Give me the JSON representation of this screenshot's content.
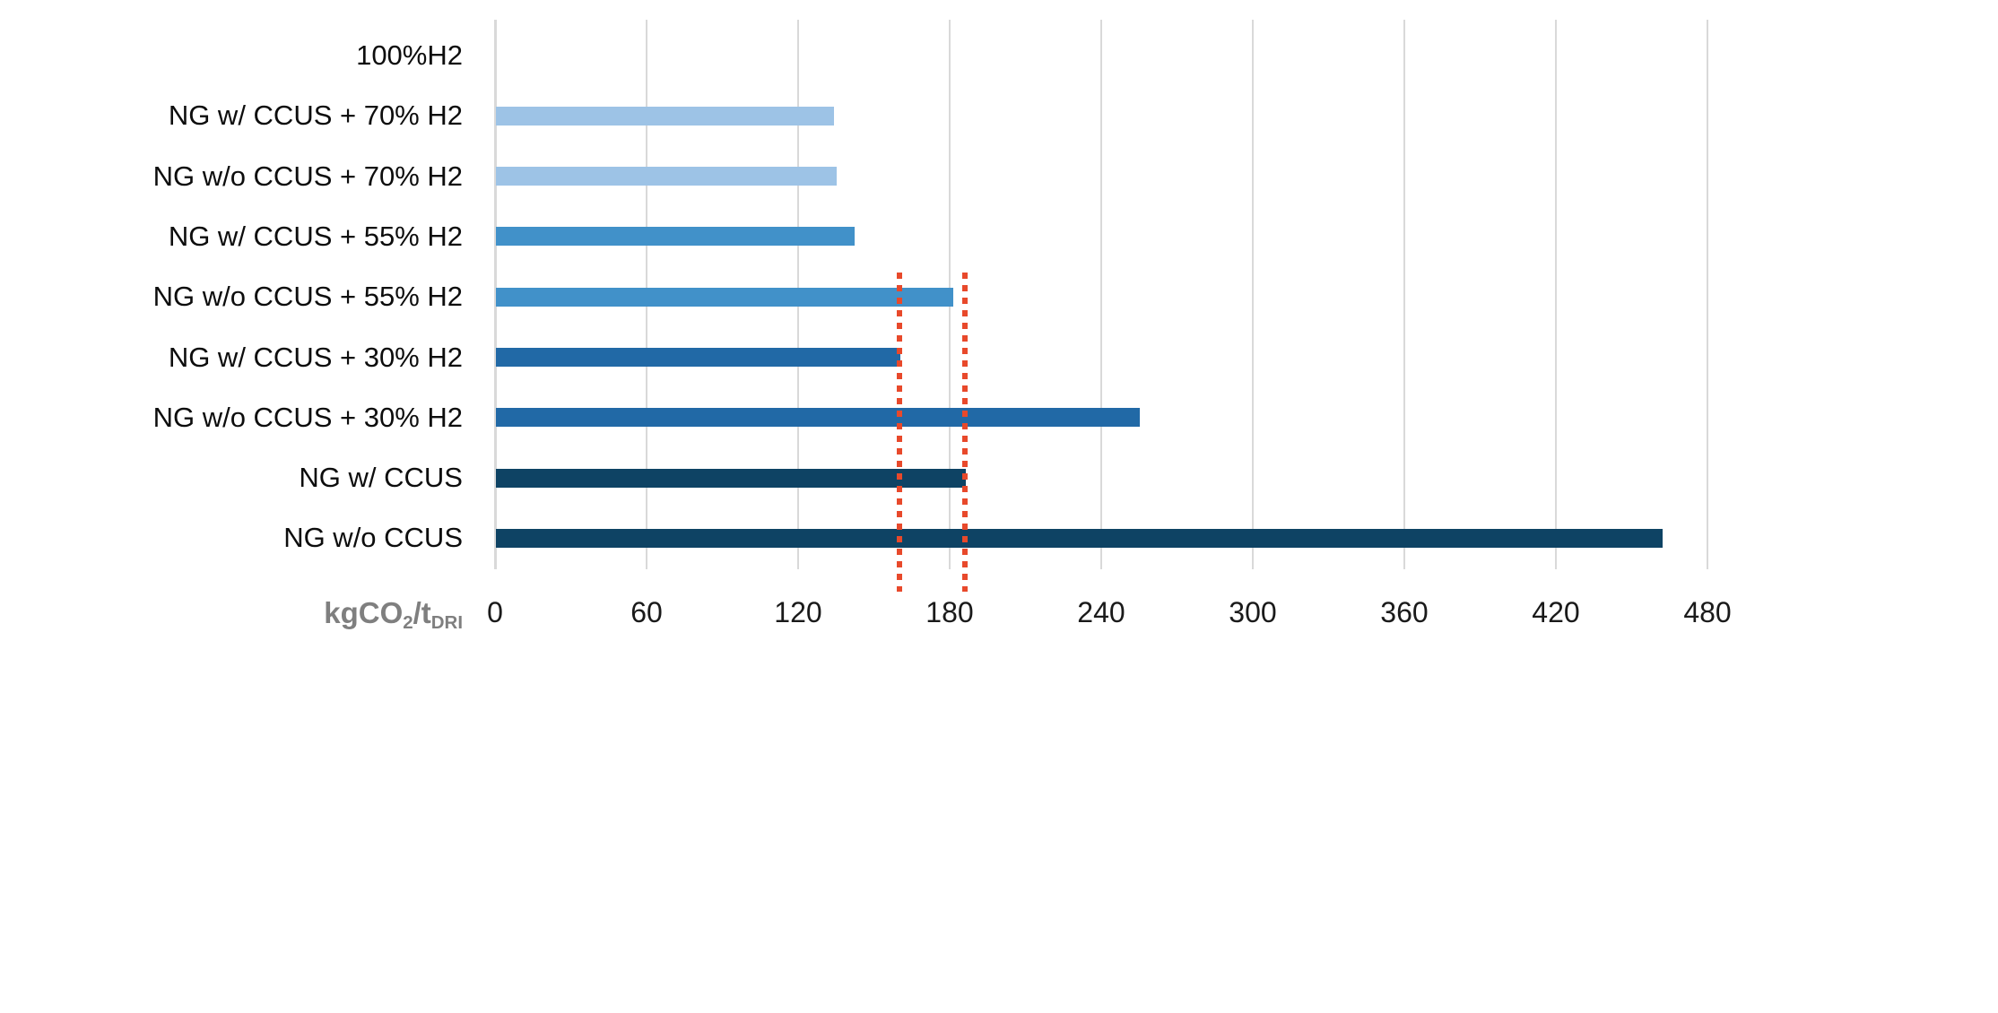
{
  "chart_data": {
    "type": "bar",
    "orientation": "horizontal",
    "title": "",
    "categories": [
      "100%H2",
      "NG w/ CCUS + 70% H2",
      "NG w/o CCUS + 70% H2",
      "NG w/ CCUS + 55% H2",
      "NG w/o CCUS + 55% H2",
      "NG w/ CCUS + 30% H2",
      "NG w/o CCUS + 30% H2",
      "NG w/ CCUS",
      "NG w/o CCUS"
    ],
    "values": [
      0,
      134,
      135,
      142,
      181,
      160,
      255,
      186,
      462
    ],
    "bar_colors": [
      "#9DC3E6",
      "#9DC3E6",
      "#9DC3E6",
      "#4191C9",
      "#4191C9",
      "#2169A6",
      "#2169A6",
      "#0E4364",
      "#0E4364"
    ],
    "x_axis": {
      "min": 0,
      "max": 480,
      "step": 60,
      "tick_labels": [
        "0",
        "60",
        "120",
        "180",
        "240",
        "300",
        "360",
        "420",
        "480"
      ]
    },
    "unit_label": {
      "text": "kgCO2/tDRI",
      "parts": [
        {
          "t": "kgCO",
          "sub": false
        },
        {
          "t": "2",
          "sub": true
        },
        {
          "t": "/t",
          "sub": false
        },
        {
          "t": "DRI",
          "sub": true
        }
      ]
    },
    "reference_lines": [
      {
        "value": 160
      },
      {
        "value": 186
      }
    ],
    "colors": {
      "gridline": "#D9D9D9",
      "axis_line": "#D9D9D9",
      "reference_line": "#E8492B",
      "background": "#FFFFFF"
    },
    "legend": "none",
    "grid": "vertical-on"
  }
}
